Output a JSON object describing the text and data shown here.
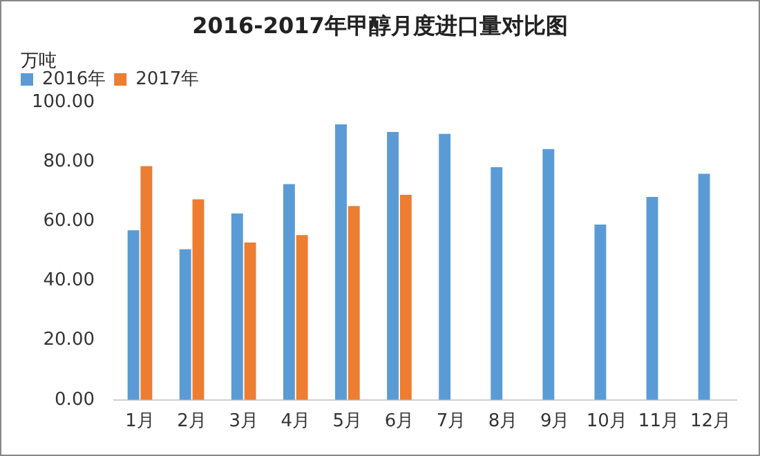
{
  "chart_data": {
    "type": "bar",
    "title": "2016-2017年甲醇月度进口量对比图",
    "ylabel": "万吨",
    "categories": [
      "1月",
      "2月",
      "3月",
      "4月",
      "5月",
      "6月",
      "7月",
      "8月",
      "9月",
      "10月",
      "11月",
      "12月"
    ],
    "series": [
      {
        "name": "2016年",
        "color": "#5b9bd5",
        "values": [
          57.0,
          50.6,
          62.6,
          72.5,
          92.6,
          90.0,
          89.4,
          78.2,
          84.3,
          58.9,
          68.2,
          76.0
        ]
      },
      {
        "name": "2017年",
        "color": "#ed7d31",
        "values": [
          78.5,
          67.4,
          52.9,
          55.4,
          65.1,
          68.9,
          null,
          null,
          null,
          null,
          null,
          null
        ]
      }
    ],
    "ylim": [
      0,
      100
    ],
    "yticks": [
      {
        "value": 0,
        "label": "0.00"
      },
      {
        "value": 20,
        "label": "20.00"
      },
      {
        "value": 40,
        "label": "40.00"
      },
      {
        "value": 60,
        "label": "60.00"
      },
      {
        "value": 80,
        "label": "80.00"
      },
      {
        "value": 100,
        "label": "100.00"
      }
    ],
    "grid": false,
    "legend": "top left"
  }
}
